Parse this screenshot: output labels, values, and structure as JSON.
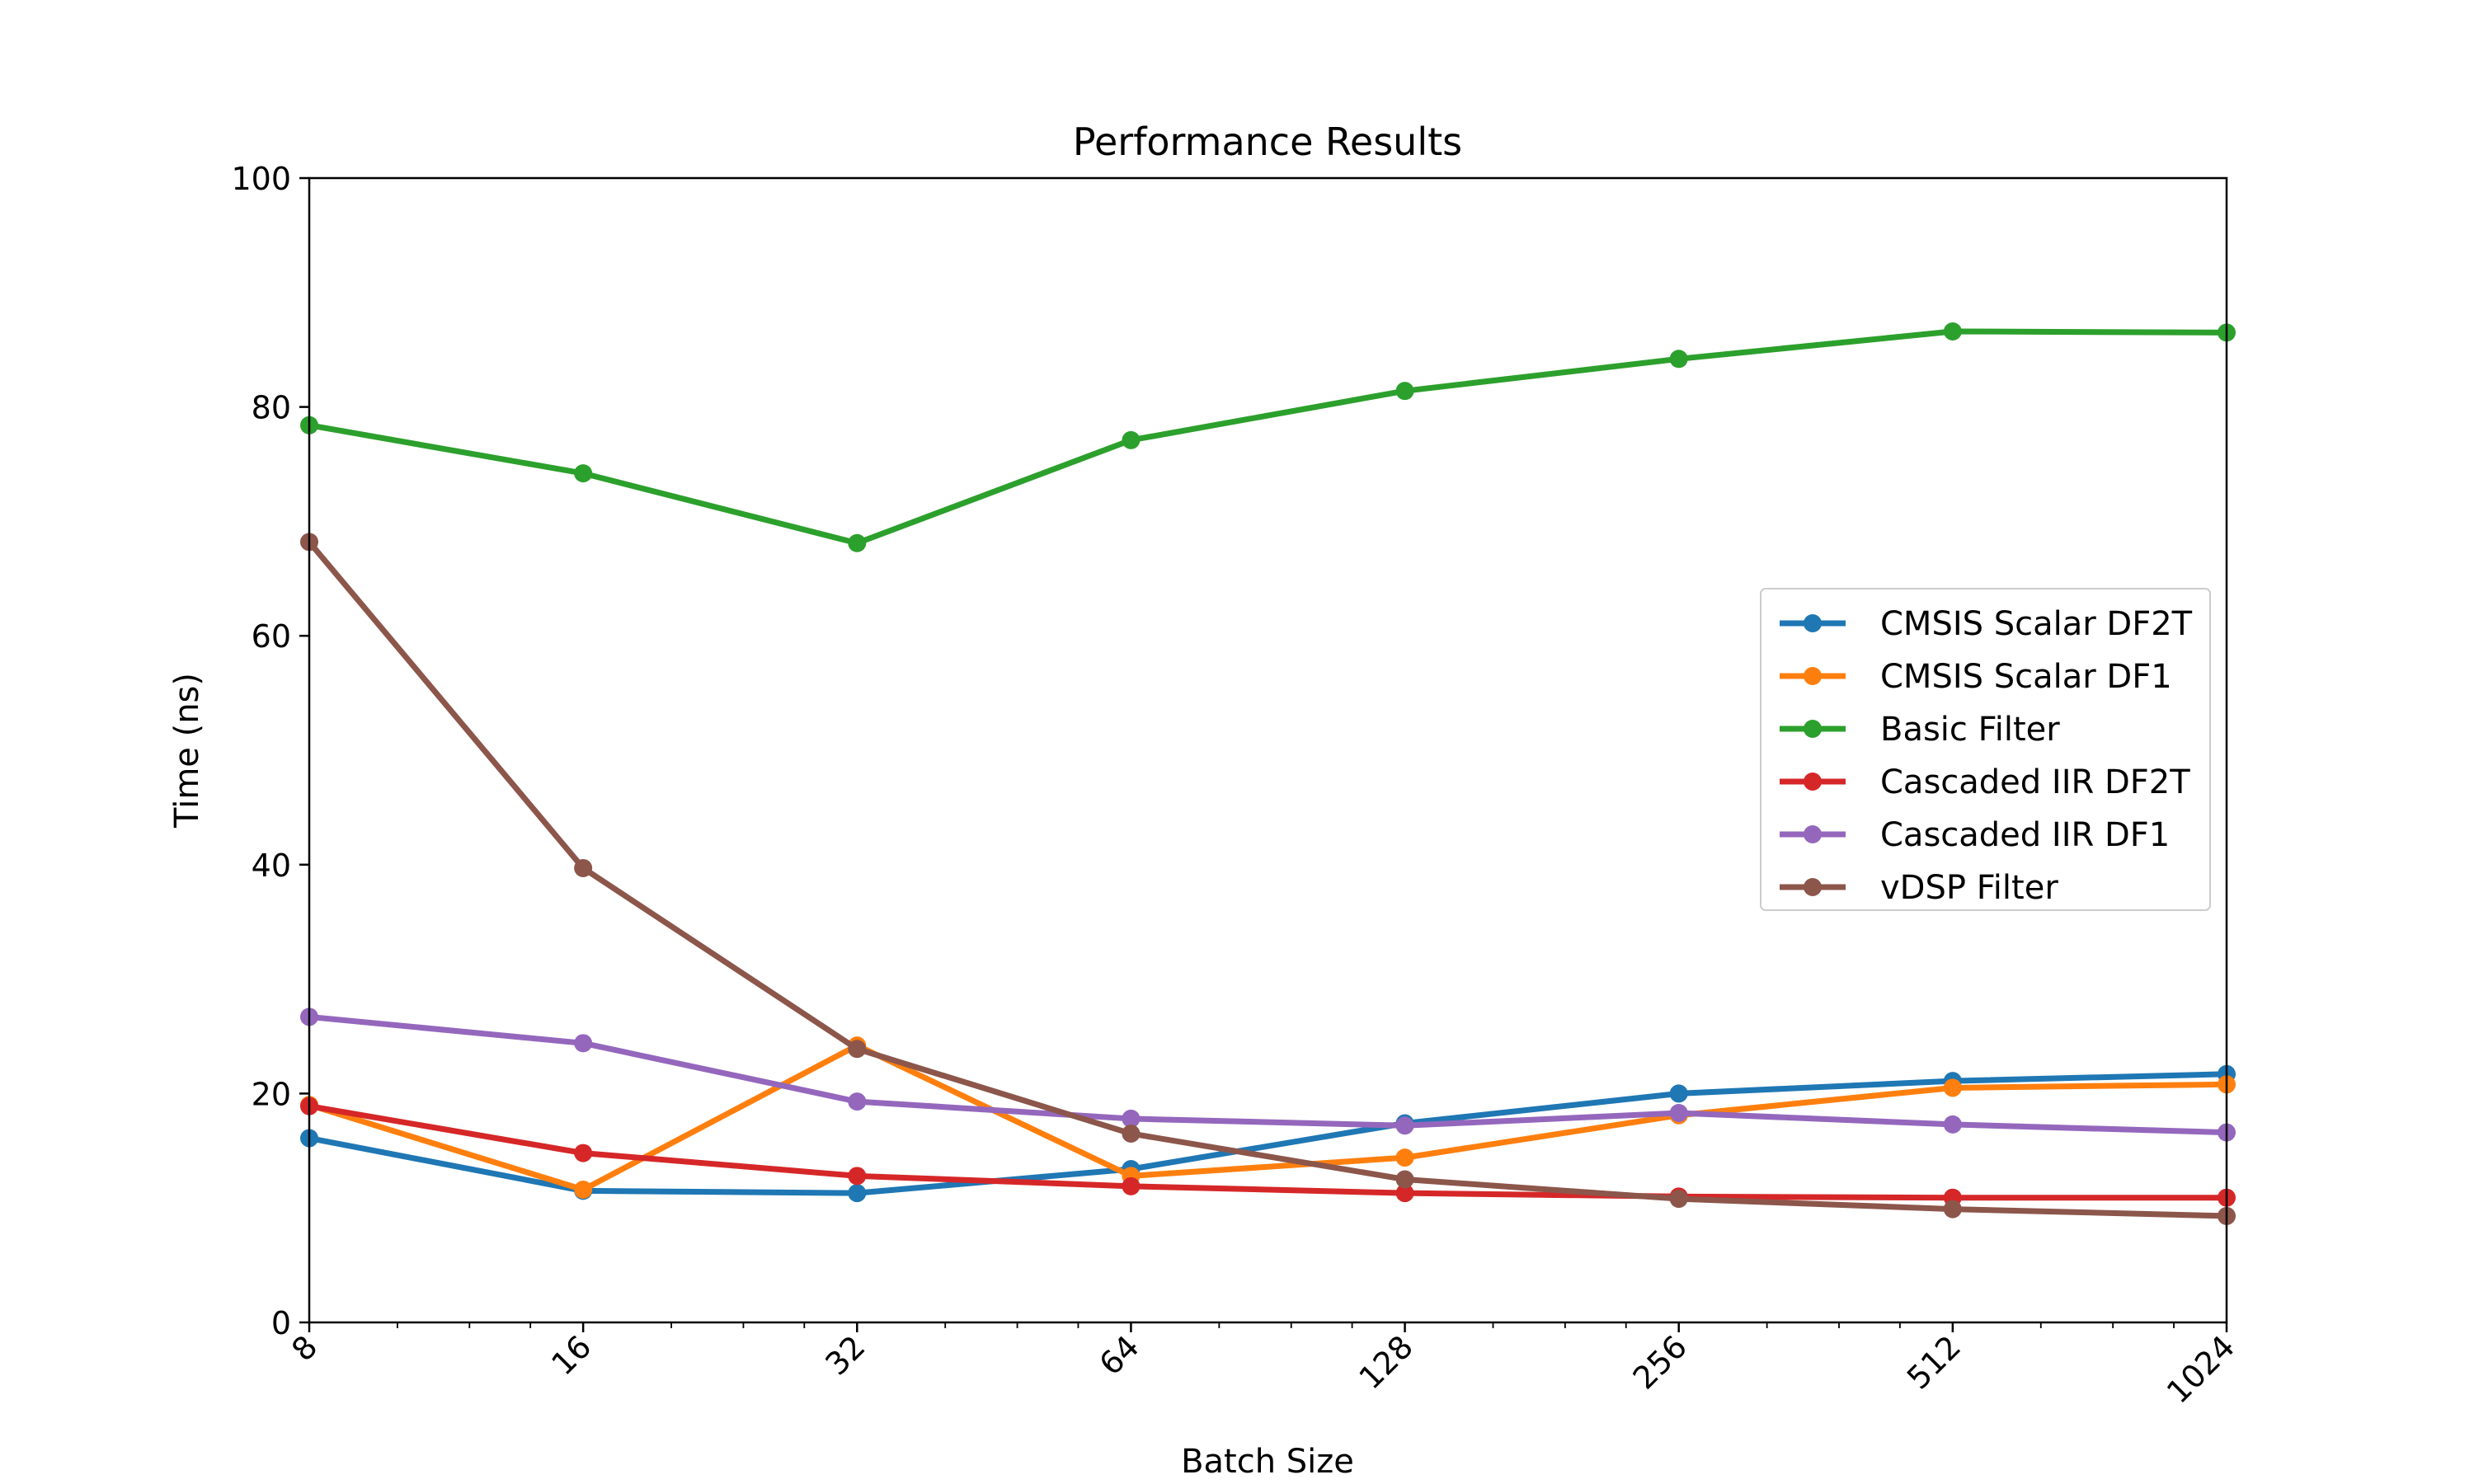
{
  "chart_data": {
    "type": "line",
    "title": "Performance Results",
    "xlabel": "Batch Size",
    "ylabel": "Time (ns)",
    "x_scale": "log2",
    "x": [
      8,
      16,
      32,
      64,
      128,
      256,
      512,
      1024
    ],
    "x_tick_labels": [
      "8",
      "16",
      "32",
      "64",
      "128",
      "256",
      "512",
      "1024"
    ],
    "xlim": [
      8,
      1024
    ],
    "ylim": [
      0,
      100
    ],
    "y_ticks": [
      0,
      20,
      40,
      60,
      80,
      100
    ],
    "y_tick_labels": [
      "0",
      "20",
      "40",
      "60",
      "80",
      "100"
    ],
    "grid": false,
    "legend_position": "center-right",
    "series": [
      {
        "name": "CMSIS Scalar DF2T",
        "color": "#1f77b4",
        "values": [
          16.1,
          11.5,
          11.3,
          13.4,
          17.4,
          20.0,
          21.1,
          21.7
        ]
      },
      {
        "name": "CMSIS Scalar DF1",
        "color": "#ff7f0e",
        "values": [
          19.0,
          11.6,
          24.2,
          12.8,
          14.4,
          18.1,
          20.5,
          20.8
        ]
      },
      {
        "name": "Basic Filter",
        "color": "#2ca02c",
        "values": [
          78.4,
          74.2,
          68.1,
          77.1,
          81.4,
          84.2,
          86.6,
          86.5
        ]
      },
      {
        "name": "Cascaded IIR DF2T",
        "color": "#d62728",
        "values": [
          18.9,
          14.8,
          12.8,
          11.9,
          11.3,
          11.0,
          10.9,
          10.9
        ]
      },
      {
        "name": "Cascaded IIR DF1",
        "color": "#9467bd",
        "values": [
          26.7,
          24.4,
          19.3,
          17.8,
          17.2,
          18.3,
          17.3,
          16.6
        ]
      },
      {
        "name": "vDSP Filter",
        "color": "#8c564b",
        "values": [
          68.2,
          39.7,
          23.9,
          16.5,
          12.5,
          10.8,
          9.9,
          9.3
        ]
      }
    ]
  }
}
